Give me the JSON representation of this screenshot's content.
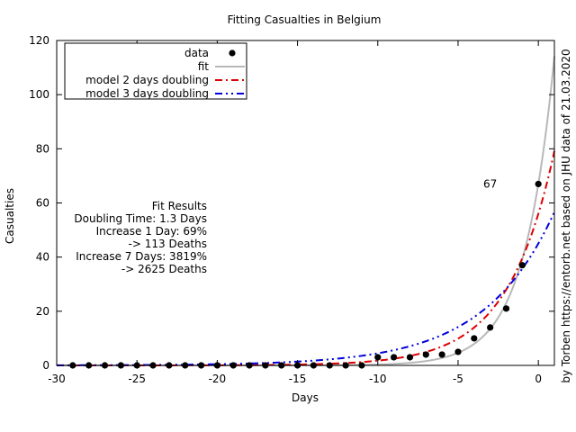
{
  "chart_data": {
    "type": "scatter",
    "title": "Fitting Casualties in Belgium",
    "xlabel": "Days",
    "ylabel": "Casualties",
    "xlim": [
      -30,
      1
    ],
    "ylim": [
      0,
      120
    ],
    "x_ticks": [
      -30,
      -25,
      -20,
      -15,
      -10,
      -5,
      0
    ],
    "y_ticks": [
      0,
      20,
      40,
      60,
      80,
      100,
      120
    ],
    "grid": false,
    "legend_position": "top-left",
    "series": [
      {
        "name": "data",
        "kind": "points",
        "color": "#000000",
        "x": [
          -29,
          -28,
          -27,
          -26,
          -25,
          -24,
          -23,
          -22,
          -21,
          -20,
          -19,
          -18,
          -17,
          -16,
          -15,
          -14,
          -13,
          -12,
          -11,
          -10,
          -9,
          -8,
          -7,
          -6,
          -5,
          -4,
          -3,
          -2,
          -1,
          0
        ],
        "y": [
          0,
          0,
          0,
          0,
          0,
          0,
          0,
          0,
          0,
          0,
          0,
          0,
          0,
          0,
          0,
          0,
          0,
          0,
          0,
          3,
          3,
          3,
          4,
          4,
          5,
          10,
          14,
          21,
          37,
          67
        ]
      },
      {
        "name": "fit",
        "kind": "line",
        "color": "#b8b8b8",
        "dash": "solid",
        "model": {
          "base": 67,
          "doubling_days": 1.3
        }
      },
      {
        "name": "model 2 days doubling",
        "kind": "line",
        "color": "#dd0000",
        "dash": "8,4,2,4",
        "model": {
          "base": 56,
          "doubling_days": 2
        }
      },
      {
        "name": "model 3 days doubling",
        "kind": "line",
        "color": "#0000dd",
        "dash": "8,4,2,4,2,4",
        "model": {
          "base": 45,
          "doubling_days": 3
        }
      }
    ],
    "annotations": {
      "point_label": {
        "text": "67",
        "x": -3,
        "y": 67
      },
      "fit_results": [
        "Fit Results",
        "Doubling Time: 1.3 Days",
        "Increase 1 Day: 69%",
        "-> 113 Deaths",
        "Increase 7 Days: 3819%",
        "-> 2625 Deaths"
      ],
      "credit": "by Torben https://entorb.net based on JHU data of 21.03.2020"
    }
  }
}
